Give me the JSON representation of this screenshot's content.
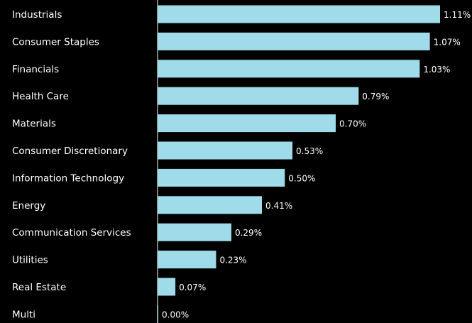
{
  "chart_data": {
    "type": "bar",
    "orientation": "horizontal",
    "title": "",
    "xlabel": "",
    "ylabel": "",
    "categories": [
      "Industrials",
      "Consumer Staples",
      "Financials",
      "Health Care",
      "Materials",
      "Consumer Discretionary",
      "Information Technology",
      "Energy",
      "Communication Services",
      "Utilities",
      "Real Estate",
      "Multi"
    ],
    "values": [
      1.11,
      1.07,
      1.03,
      0.79,
      0.7,
      0.53,
      0.5,
      0.41,
      0.29,
      0.23,
      0.07,
      0.0
    ],
    "value_labels": [
      "1.11%",
      "1.07%",
      "1.03%",
      "0.79%",
      "0.70%",
      "0.53%",
      "0.50%",
      "0.41%",
      "0.29%",
      "0.23%",
      "0.07%",
      "0.00%"
    ],
    "xlim": [
      0,
      1.11
    ],
    "grid": false,
    "legend": "none",
    "colors": {
      "background": "#000000",
      "bar": "#9fdbe8",
      "text": "#ffffff",
      "axis": "#ffffff"
    }
  }
}
